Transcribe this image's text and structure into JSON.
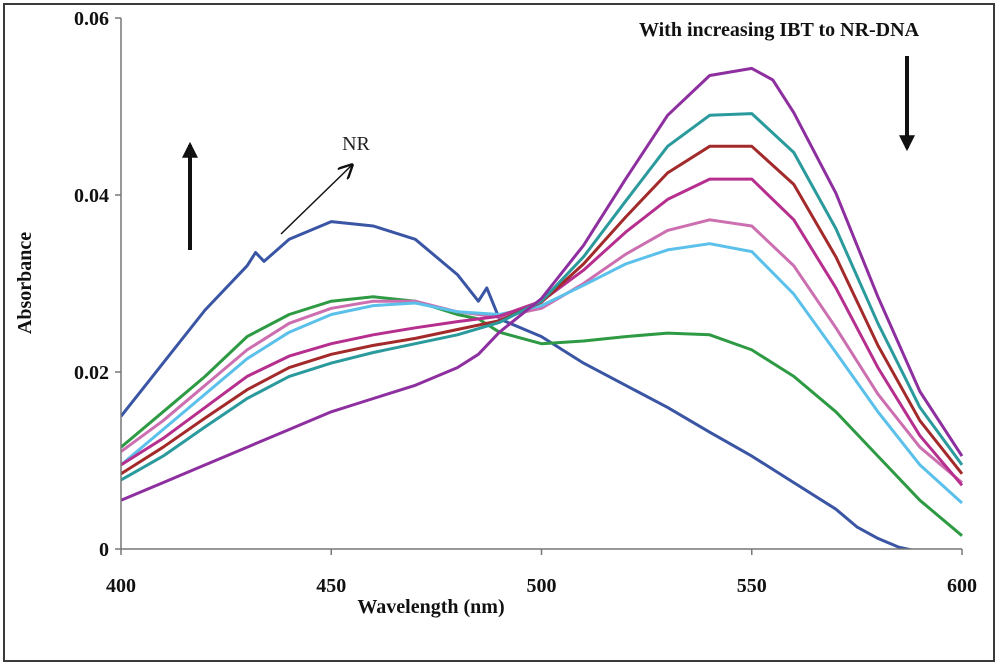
{
  "chart_data": {
    "type": "line",
    "title": "",
    "xlabel": "Wavelength (nm)",
    "ylabel": "Absorbance",
    "xlim": [
      400,
      600
    ],
    "ylim": [
      0,
      0.06
    ],
    "x_ticks": [
      "400",
      "450",
      "500",
      "550",
      "600"
    ],
    "y_ticks": [
      "0",
      "0.02",
      "0.04",
      "0.06"
    ],
    "grid": false,
    "legend": "none",
    "annotations": {
      "nr_label": "NR",
      "increase_label": "With increasing IBT to NR-DNA"
    },
    "series": [
      {
        "color": "#3a55a4",
        "x": [
          400,
          410,
          420,
          430,
          432,
          434,
          440,
          450,
          460,
          470,
          480,
          485,
          487,
          490,
          500,
          510,
          520,
          530,
          540,
          550,
          560,
          570,
          575,
          580,
          585,
          590
        ],
        "y": [
          0.015,
          0.021,
          0.027,
          0.032,
          0.0335,
          0.0325,
          0.035,
          0.037,
          0.0365,
          0.035,
          0.031,
          0.028,
          0.0295,
          0.026,
          0.024,
          0.021,
          0.0185,
          0.016,
          0.0132,
          0.0105,
          0.0075,
          0.0045,
          0.0025,
          0.0012,
          0.0002,
          -0.0003
        ]
      },
      {
        "color": "#2e9a43",
        "x": [
          400,
          410,
          420,
          430,
          440,
          450,
          460,
          470,
          480,
          485,
          490,
          500,
          510,
          520,
          530,
          540,
          550,
          560,
          570,
          580,
          590,
          600
        ],
        "y": [
          0.0115,
          0.0155,
          0.0195,
          0.024,
          0.0265,
          0.028,
          0.0285,
          0.028,
          0.0265,
          0.026,
          0.0245,
          0.0232,
          0.0235,
          0.024,
          0.0244,
          0.0242,
          0.0225,
          0.0195,
          0.0155,
          0.0105,
          0.0055,
          0.0015
        ]
      },
      {
        "color": "#cc6fb0",
        "x": [
          400,
          410,
          420,
          430,
          440,
          450,
          460,
          470,
          480,
          490,
          500,
          510,
          520,
          530,
          540,
          550,
          560,
          570,
          580,
          590,
          600
        ],
        "y": [
          0.011,
          0.0145,
          0.0185,
          0.0225,
          0.0255,
          0.0272,
          0.028,
          0.028,
          0.0268,
          0.0262,
          0.0272,
          0.03,
          0.0333,
          0.036,
          0.0372,
          0.0365,
          0.032,
          0.025,
          0.0175,
          0.0115,
          0.0075
        ]
      },
      {
        "color": "#5bc1ea",
        "x": [
          400,
          410,
          420,
          430,
          440,
          450,
          460,
          470,
          480,
          490,
          500,
          510,
          520,
          530,
          540,
          550,
          560,
          570,
          580,
          590,
          600
        ],
        "y": [
          0.0095,
          0.0135,
          0.0175,
          0.0215,
          0.0245,
          0.0265,
          0.0275,
          0.0278,
          0.0268,
          0.0265,
          0.0275,
          0.0298,
          0.0322,
          0.0338,
          0.0345,
          0.0336,
          0.0288,
          0.0222,
          0.0155,
          0.0095,
          0.0052
        ]
      },
      {
        "color": "#b62f8e",
        "x": [
          400,
          410,
          420,
          430,
          440,
          450,
          460,
          470,
          480,
          490,
          500,
          510,
          520,
          530,
          540,
          550,
          560,
          570,
          580,
          590,
          600
        ],
        "y": [
          0.0095,
          0.0125,
          0.016,
          0.0195,
          0.0218,
          0.0232,
          0.0242,
          0.025,
          0.0257,
          0.0263,
          0.028,
          0.0315,
          0.0358,
          0.0395,
          0.0418,
          0.0418,
          0.0372,
          0.0295,
          0.0205,
          0.0128,
          0.0072
        ]
      },
      {
        "color": "#a32a2a",
        "x": [
          400,
          410,
          420,
          430,
          440,
          450,
          460,
          470,
          480,
          490,
          500,
          510,
          520,
          530,
          540,
          550,
          560,
          570,
          580,
          590,
          600
        ],
        "y": [
          0.0085,
          0.0115,
          0.0148,
          0.018,
          0.0205,
          0.022,
          0.023,
          0.0238,
          0.0248,
          0.0258,
          0.0279,
          0.0322,
          0.0375,
          0.0425,
          0.0455,
          0.0455,
          0.0412,
          0.033,
          0.023,
          0.0145,
          0.0085
        ]
      },
      {
        "color": "#2a9a9c",
        "x": [
          400,
          410,
          420,
          430,
          440,
          450,
          460,
          470,
          480,
          490,
          500,
          510,
          520,
          530,
          540,
          550,
          560,
          570,
          580,
          590,
          600
        ],
        "y": [
          0.0078,
          0.0105,
          0.0138,
          0.017,
          0.0195,
          0.021,
          0.0222,
          0.0232,
          0.0242,
          0.0256,
          0.028,
          0.033,
          0.0393,
          0.0455,
          0.049,
          0.0492,
          0.0448,
          0.0362,
          0.0255,
          0.016,
          0.0095
        ]
      },
      {
        "color": "#8e2fa0",
        "x": [
          400,
          410,
          420,
          430,
          440,
          450,
          460,
          470,
          480,
          485,
          490,
          500,
          510,
          520,
          530,
          540,
          550,
          555,
          560,
          570,
          580,
          590,
          600
        ],
        "y": [
          0.0055,
          0.0075,
          0.0095,
          0.0115,
          0.0135,
          0.0155,
          0.017,
          0.0185,
          0.0205,
          0.022,
          0.0245,
          0.0283,
          0.0343,
          0.0418,
          0.049,
          0.0535,
          0.0543,
          0.053,
          0.0493,
          0.0402,
          0.0285,
          0.0178,
          0.0105
        ]
      }
    ]
  }
}
